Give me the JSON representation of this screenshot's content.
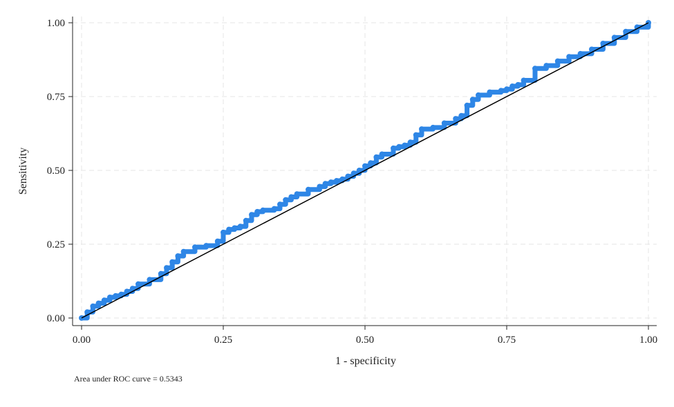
{
  "chart_data": {
    "type": "line",
    "xlabel": "1 - specificity",
    "ylabel": "Sensitivity",
    "xlim": [
      0,
      1
    ],
    "ylim": [
      0,
      1
    ],
    "x_ticks": [
      "0.00",
      "0.25",
      "0.50",
      "0.75",
      "1.00"
    ],
    "y_ticks": [
      "0.00",
      "0.25",
      "0.50",
      "0.75",
      "1.00"
    ],
    "grid": true,
    "note": "Area under ROC curve = 0.5343",
    "series": [
      {
        "color": "#2e86e6",
        "marker": "circle",
        "x": [
          0.0,
          0.01,
          0.02,
          0.03,
          0.04,
          0.05,
          0.06,
          0.07,
          0.08,
          0.09,
          0.1,
          0.12,
          0.14,
          0.15,
          0.16,
          0.17,
          0.18,
          0.2,
          0.22,
          0.24,
          0.25,
          0.26,
          0.27,
          0.28,
          0.29,
          0.3,
          0.31,
          0.32,
          0.34,
          0.35,
          0.36,
          0.37,
          0.38,
          0.4,
          0.42,
          0.43,
          0.44,
          0.45,
          0.46,
          0.47,
          0.48,
          0.49,
          0.5,
          0.51,
          0.52,
          0.53,
          0.55,
          0.56,
          0.57,
          0.58,
          0.59,
          0.6,
          0.62,
          0.64,
          0.66,
          0.67,
          0.68,
          0.69,
          0.7,
          0.72,
          0.74,
          0.75,
          0.76,
          0.77,
          0.78,
          0.8,
          0.82,
          0.84,
          0.86,
          0.88,
          0.9,
          0.92,
          0.94,
          0.96,
          0.98,
          1.0
        ],
        "y": [
          0.0,
          0.02,
          0.04,
          0.05,
          0.06,
          0.07,
          0.075,
          0.08,
          0.09,
          0.1,
          0.115,
          0.13,
          0.15,
          0.17,
          0.19,
          0.21,
          0.225,
          0.24,
          0.245,
          0.26,
          0.29,
          0.3,
          0.305,
          0.31,
          0.33,
          0.35,
          0.36,
          0.365,
          0.37,
          0.385,
          0.4,
          0.41,
          0.42,
          0.435,
          0.445,
          0.455,
          0.46,
          0.465,
          0.47,
          0.48,
          0.49,
          0.5,
          0.515,
          0.525,
          0.545,
          0.555,
          0.575,
          0.58,
          0.585,
          0.595,
          0.62,
          0.64,
          0.645,
          0.66,
          0.675,
          0.685,
          0.72,
          0.74,
          0.755,
          0.765,
          0.77,
          0.775,
          0.785,
          0.79,
          0.805,
          0.845,
          0.855,
          0.87,
          0.885,
          0.895,
          0.91,
          0.93,
          0.95,
          0.97,
          0.985,
          1.0
        ]
      }
    ],
    "reference_line": {
      "color": "#000000",
      "x": [
        0,
        1
      ],
      "y": [
        0,
        1
      ]
    }
  }
}
